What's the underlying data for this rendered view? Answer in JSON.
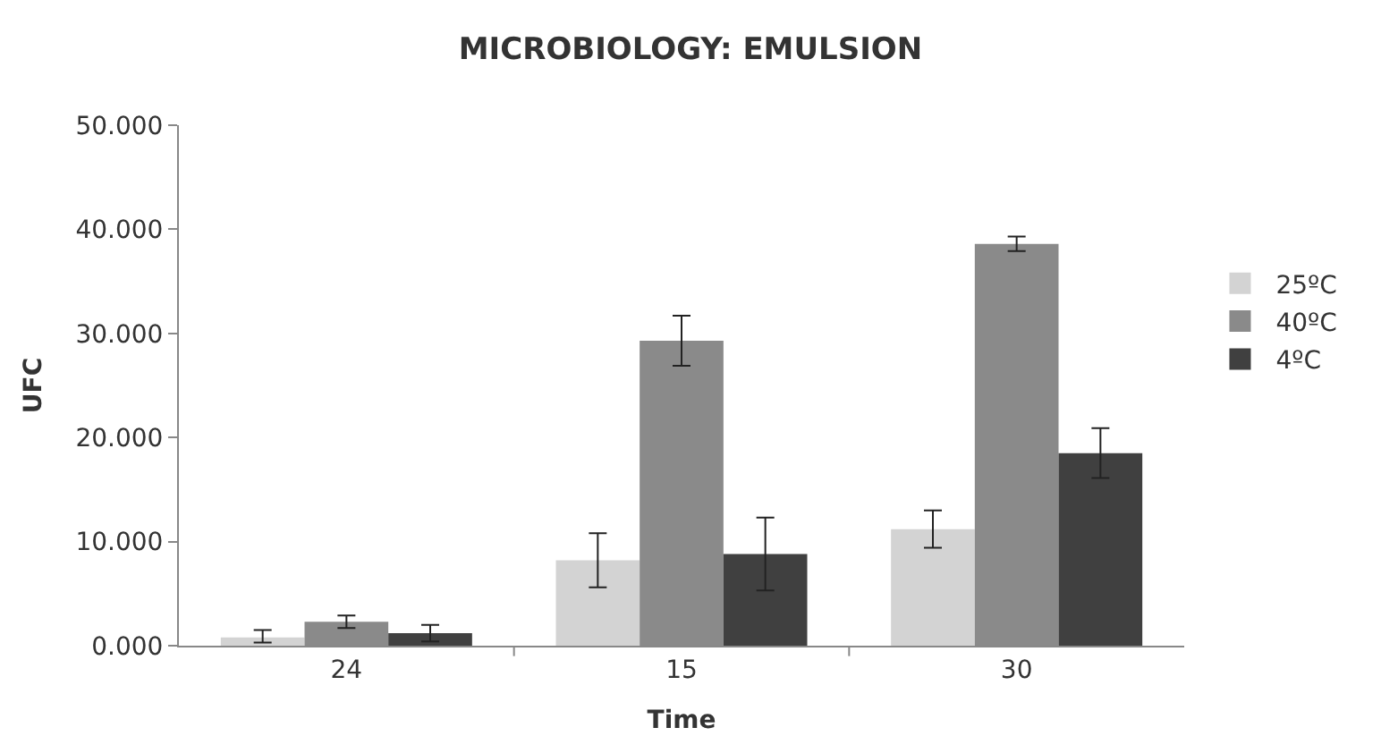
{
  "chart_data": {
    "type": "bar",
    "title": "MICROBIOLOGY: EMULSION",
    "xlabel": "Time",
    "ylabel": "UFC",
    "categories": [
      "24",
      "15",
      "30"
    ],
    "series": [
      {
        "name": "25ºC",
        "color": "#d3d3d3",
        "values": [
          0.8,
          8.2,
          11.2
        ],
        "errors": [
          [
            0.3,
            1.5
          ],
          2.6,
          1.8
        ]
      },
      {
        "name": "40ºC",
        "color": "#8a8a8a",
        "values": [
          2.3,
          29.3,
          38.6
        ],
        "errors": [
          0.6,
          2.4,
          0.7
        ]
      },
      {
        "name": "4ºC",
        "color": "#404040",
        "values": [
          1.2,
          8.8,
          18.5
        ],
        "errors": [
          0.8,
          3.5,
          2.4
        ]
      }
    ],
    "ylim": [
      0,
      50
    ],
    "yticks": [
      {
        "value": 0,
        "label": "0.000"
      },
      {
        "value": 10,
        "label": "10.000"
      },
      {
        "value": 20,
        "label": "20.000"
      },
      {
        "value": 30,
        "label": "30.000"
      },
      {
        "value": 40,
        "label": "40.000"
      },
      {
        "value": 50,
        "label": "50.000"
      }
    ],
    "legend": "right"
  }
}
